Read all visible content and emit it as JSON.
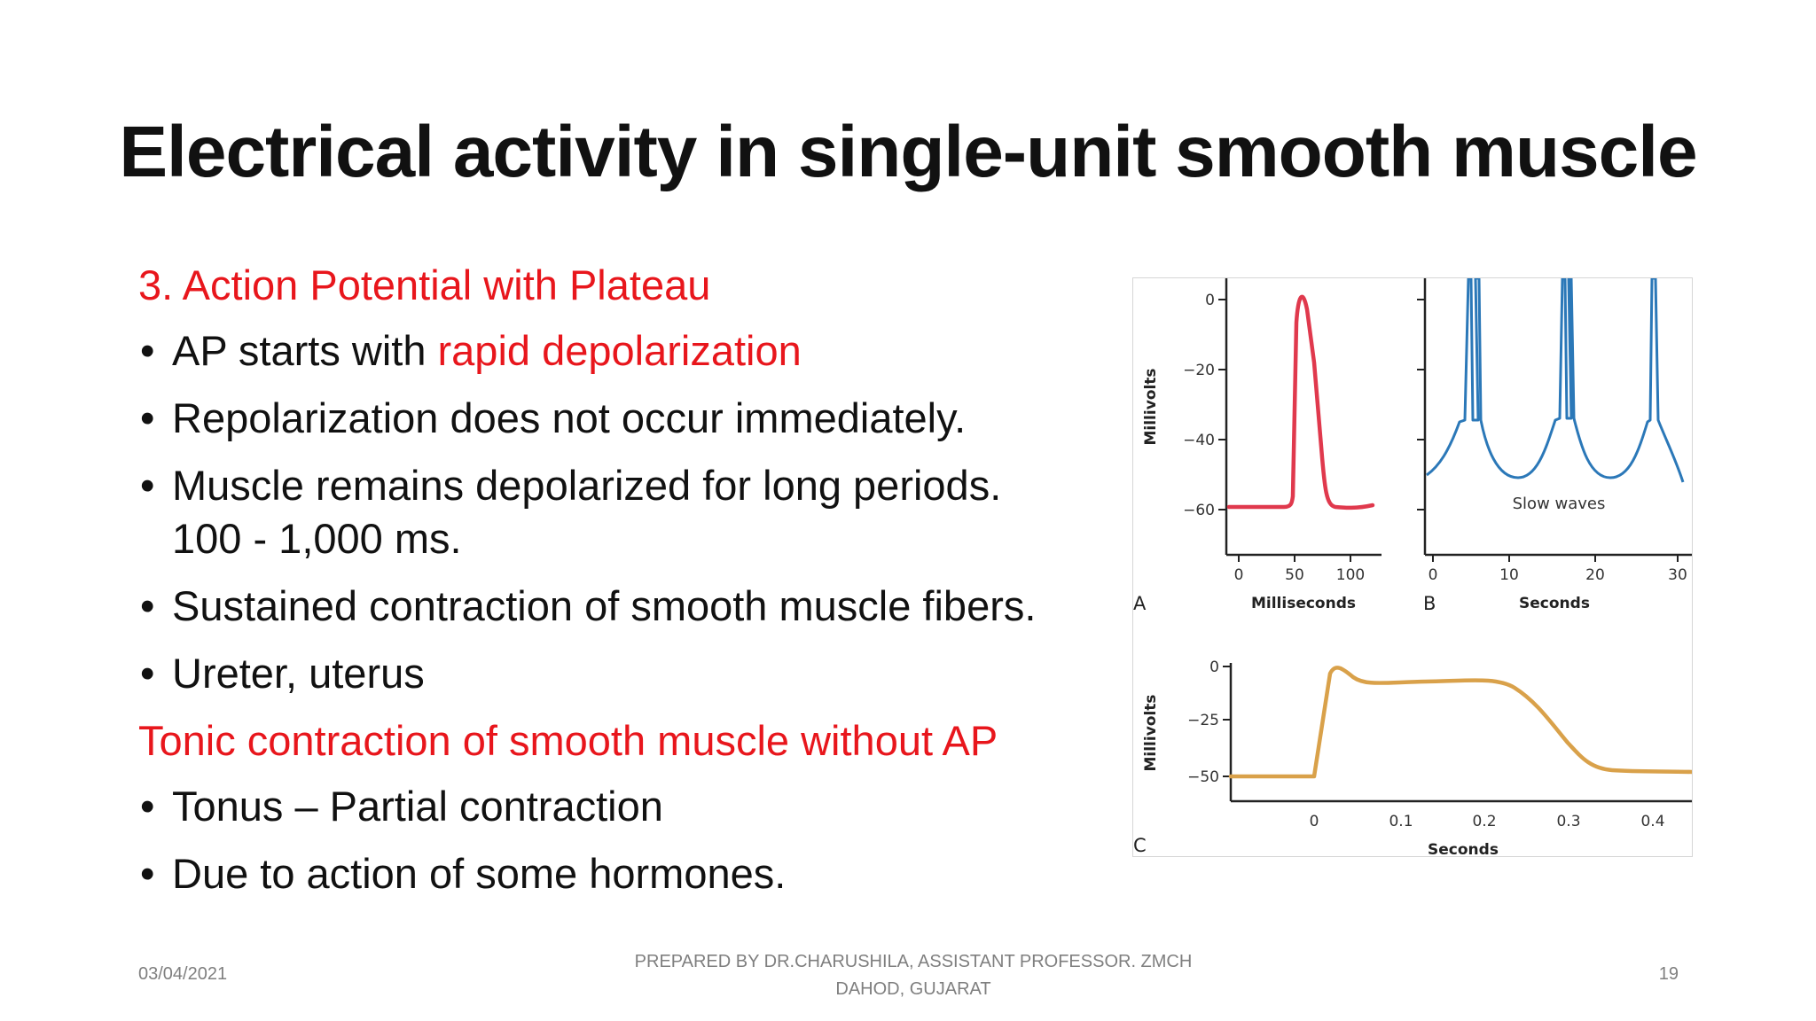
{
  "slide": {
    "title": "Electrical activity in single-unit smooth muscle",
    "heading1": "3. Action Potential with Plateau",
    "bullets1": [
      {
        "pre": "AP starts with ",
        "red": "rapid depolarization"
      },
      {
        "text": "Repolarization does not occur immediately."
      },
      {
        "text": "Muscle remains depolarized for long periods.",
        "text2": "100 - 1,000 ms."
      },
      {
        "text": "Sustained contraction of smooth muscle fibers."
      },
      {
        "text": "Ureter, uterus"
      }
    ],
    "heading2": "Tonic contraction of smooth muscle without AP",
    "bullets2": [
      {
        "text": "Tonus – Partial contraction"
      },
      {
        "text": "Due to  action of some hormones."
      }
    ]
  },
  "figure": {
    "panelA": {
      "letter": "A",
      "ylabel": "Millivolts",
      "xlabel": "Milliseconds",
      "yticks": [
        "0",
        "−20",
        "−40",
        "−60"
      ],
      "xticks": [
        "0",
        "50",
        "100"
      ],
      "color": "#e0394d"
    },
    "panelB": {
      "letter": "B",
      "xlabel": "Seconds",
      "xticks": [
        "0",
        "10",
        "20",
        "30"
      ],
      "annotation": "Slow waves",
      "color": "#2b78b8"
    },
    "panelC": {
      "letter": "C",
      "ylabel": "Millivolts",
      "xlabel": "Seconds",
      "yticks": [
        "0",
        "−25",
        "−50"
      ],
      "xticks": [
        "0",
        "0.1",
        "0.2",
        "0.3",
        "0.4"
      ],
      "color": "#d9a14a"
    }
  },
  "footer": {
    "date": "03/04/2021",
    "prepared_line1": "PREPARED BY DR.CHARUSHILA, ASSISTANT PROFESSOR. ZMCH",
    "prepared_line2": "DAHOD, GUJARAT",
    "page": "19"
  }
}
